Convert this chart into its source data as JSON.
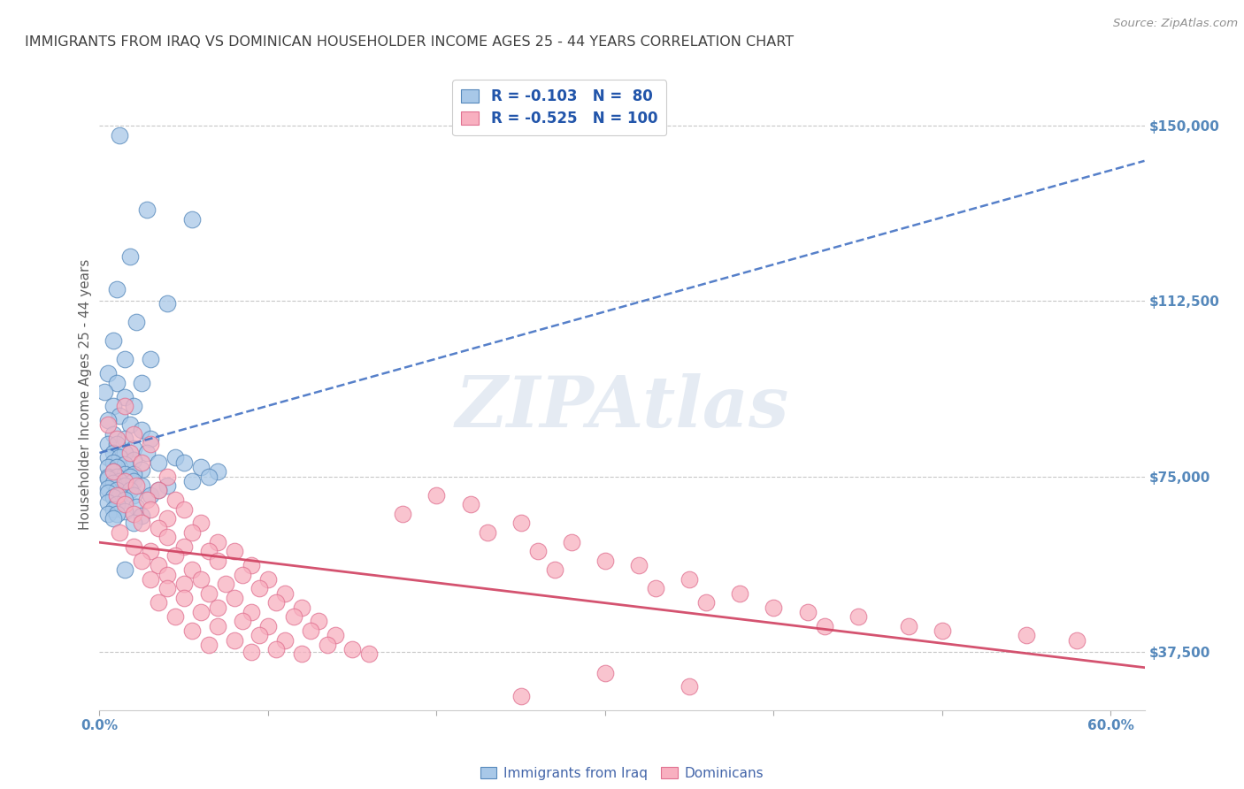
{
  "title": "IMMIGRANTS FROM IRAQ VS DOMINICAN HOUSEHOLDER INCOME AGES 25 - 44 YEARS CORRELATION CHART",
  "source_text": "Source: ZipAtlas.com",
  "ylabel": "Householder Income Ages 25 - 44 years",
  "y_tick_labels": [
    "$37,500",
    "$75,000",
    "$112,500",
    "$150,000"
  ],
  "y_tick_values": [
    37500,
    75000,
    112500,
    150000
  ],
  "x_tick_values": [
    0.0,
    10.0,
    20.0,
    30.0,
    40.0,
    50.0,
    60.0
  ],
  "x_tick_labels_show": [
    "0.0%",
    "",
    "",
    "",
    "",
    "",
    "60.0%"
  ],
  "xlim": [
    0.0,
    62.0
  ],
  "ylim": [
    25000,
    160000
  ],
  "iraq_color": "#a8c8e8",
  "iraq_edge": "#5588bb",
  "dominican_color": "#f8b0c0",
  "dominican_edge": "#e07090",
  "iraq_line_color": "#4472c4",
  "dominican_line_color": "#d04060",
  "watermark": "ZIPAtlas",
  "background_color": "#ffffff",
  "grid_color": "#c8c8c8",
  "title_color": "#404040",
  "y_label_color": "#5588bb",
  "x_label_color": "#5588bb",
  "iraq_R": "-0.103",
  "iraq_N": " 80",
  "dominican_R": "-0.525",
  "dominican_N": "100",
  "iraq_scatter": [
    [
      1.2,
      148000
    ],
    [
      2.8,
      132000
    ],
    [
      5.5,
      130000
    ],
    [
      1.8,
      122000
    ],
    [
      1.0,
      115000
    ],
    [
      4.0,
      112000
    ],
    [
      2.2,
      108000
    ],
    [
      0.8,
      104000
    ],
    [
      1.5,
      100000
    ],
    [
      3.0,
      100000
    ],
    [
      0.5,
      97000
    ],
    [
      1.0,
      95000
    ],
    [
      2.5,
      95000
    ],
    [
      0.3,
      93000
    ],
    [
      1.5,
      92000
    ],
    [
      0.8,
      90000
    ],
    [
      2.0,
      90000
    ],
    [
      1.2,
      88000
    ],
    [
      0.5,
      87000
    ],
    [
      1.8,
      86000
    ],
    [
      2.5,
      85000
    ],
    [
      0.8,
      84000
    ],
    [
      1.5,
      83000
    ],
    [
      3.0,
      83000
    ],
    [
      0.5,
      82000
    ],
    [
      1.0,
      82000
    ],
    [
      2.0,
      81000
    ],
    [
      0.8,
      80000
    ],
    [
      1.5,
      80000
    ],
    [
      2.8,
      80000
    ],
    [
      0.5,
      79000
    ],
    [
      1.2,
      79000
    ],
    [
      2.0,
      78500
    ],
    [
      3.5,
      78000
    ],
    [
      0.8,
      78000
    ],
    [
      1.5,
      77500
    ],
    [
      0.5,
      77000
    ],
    [
      1.0,
      77000
    ],
    [
      2.5,
      76500
    ],
    [
      0.8,
      76000
    ],
    [
      1.5,
      75500
    ],
    [
      2.0,
      75500
    ],
    [
      0.5,
      75000
    ],
    [
      1.0,
      75000
    ],
    [
      1.8,
      75000
    ],
    [
      0.5,
      74500
    ],
    [
      1.2,
      74000
    ],
    [
      2.0,
      74000
    ],
    [
      0.8,
      73500
    ],
    [
      1.5,
      73000
    ],
    [
      2.5,
      73000
    ],
    [
      0.5,
      72500
    ],
    [
      1.0,
      72000
    ],
    [
      1.8,
      72000
    ],
    [
      0.5,
      71500
    ],
    [
      1.2,
      71000
    ],
    [
      2.0,
      71000
    ],
    [
      3.0,
      71000
    ],
    [
      0.8,
      70500
    ],
    [
      1.5,
      70000
    ],
    [
      0.5,
      69500
    ],
    [
      1.0,
      69000
    ],
    [
      2.2,
      68500
    ],
    [
      0.8,
      68000
    ],
    [
      1.5,
      67500
    ],
    [
      0.5,
      67000
    ],
    [
      1.0,
      67000
    ],
    [
      2.5,
      66500
    ],
    [
      0.8,
      66000
    ],
    [
      4.5,
      79000
    ],
    [
      5.0,
      78000
    ],
    [
      6.0,
      77000
    ],
    [
      7.0,
      76000
    ],
    [
      6.5,
      75000
    ],
    [
      5.5,
      74000
    ],
    [
      4.0,
      73000
    ],
    [
      3.5,
      72000
    ],
    [
      2.0,
      65000
    ],
    [
      1.5,
      55000
    ]
  ],
  "dominican_scatter": [
    [
      1.5,
      90000
    ],
    [
      0.5,
      86000
    ],
    [
      2.0,
      84000
    ],
    [
      1.0,
      83000
    ],
    [
      3.0,
      82000
    ],
    [
      1.8,
      80000
    ],
    [
      2.5,
      78000
    ],
    [
      0.8,
      76000
    ],
    [
      4.0,
      75000
    ],
    [
      1.5,
      74000
    ],
    [
      2.2,
      73000
    ],
    [
      3.5,
      72000
    ],
    [
      1.0,
      71000
    ],
    [
      2.8,
      70000
    ],
    [
      4.5,
      70000
    ],
    [
      1.5,
      69000
    ],
    [
      3.0,
      68000
    ],
    [
      5.0,
      68000
    ],
    [
      2.0,
      67000
    ],
    [
      4.0,
      66000
    ],
    [
      2.5,
      65000
    ],
    [
      6.0,
      65000
    ],
    [
      3.5,
      64000
    ],
    [
      1.2,
      63000
    ],
    [
      5.5,
      63000
    ],
    [
      4.0,
      62000
    ],
    [
      7.0,
      61000
    ],
    [
      2.0,
      60000
    ],
    [
      5.0,
      60000
    ],
    [
      3.0,
      59000
    ],
    [
      6.5,
      59000
    ],
    [
      8.0,
      59000
    ],
    [
      4.5,
      58000
    ],
    [
      2.5,
      57000
    ],
    [
      7.0,
      57000
    ],
    [
      3.5,
      56000
    ],
    [
      9.0,
      56000
    ],
    [
      5.5,
      55000
    ],
    [
      4.0,
      54000
    ],
    [
      8.5,
      54000
    ],
    [
      3.0,
      53000
    ],
    [
      6.0,
      53000
    ],
    [
      10.0,
      53000
    ],
    [
      5.0,
      52000
    ],
    [
      7.5,
      52000
    ],
    [
      4.0,
      51000
    ],
    [
      9.5,
      51000
    ],
    [
      6.5,
      50000
    ],
    [
      11.0,
      50000
    ],
    [
      5.0,
      49000
    ],
    [
      8.0,
      49000
    ],
    [
      3.5,
      48000
    ],
    [
      10.5,
      48000
    ],
    [
      7.0,
      47000
    ],
    [
      12.0,
      47000
    ],
    [
      6.0,
      46000
    ],
    [
      9.0,
      46000
    ],
    [
      4.5,
      45000
    ],
    [
      11.5,
      45000
    ],
    [
      8.5,
      44000
    ],
    [
      13.0,
      44000
    ],
    [
      7.0,
      43000
    ],
    [
      10.0,
      43000
    ],
    [
      5.5,
      42000
    ],
    [
      12.5,
      42000
    ],
    [
      9.5,
      41000
    ],
    [
      14.0,
      41000
    ],
    [
      8.0,
      40000
    ],
    [
      11.0,
      40000
    ],
    [
      6.5,
      39000
    ],
    [
      13.5,
      39000
    ],
    [
      10.5,
      38000
    ],
    [
      15.0,
      38000
    ],
    [
      9.0,
      37500
    ],
    [
      12.0,
      37000
    ],
    [
      16.0,
      37000
    ],
    [
      20.0,
      71000
    ],
    [
      22.0,
      69000
    ],
    [
      18.0,
      67000
    ],
    [
      25.0,
      65000
    ],
    [
      23.0,
      63000
    ],
    [
      28.0,
      61000
    ],
    [
      26.0,
      59000
    ],
    [
      30.0,
      57000
    ],
    [
      32.0,
      56000
    ],
    [
      27.0,
      55000
    ],
    [
      35.0,
      53000
    ],
    [
      33.0,
      51000
    ],
    [
      38.0,
      50000
    ],
    [
      36.0,
      48000
    ],
    [
      40.0,
      47000
    ],
    [
      42.0,
      46000
    ],
    [
      45.0,
      45000
    ],
    [
      43.0,
      43000
    ],
    [
      48.0,
      43000
    ],
    [
      50.0,
      42000
    ],
    [
      55.0,
      41000
    ],
    [
      58.0,
      40000
    ],
    [
      30.0,
      33000
    ],
    [
      35.0,
      30000
    ],
    [
      25.0,
      28000
    ]
  ]
}
